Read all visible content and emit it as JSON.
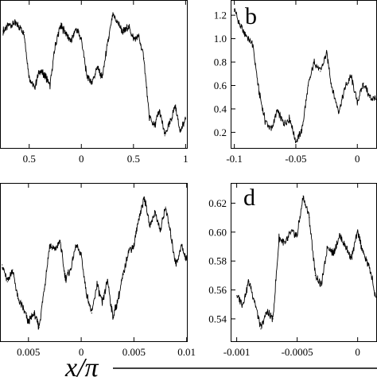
{
  "figure": {
    "xlabel": "x/π"
  },
  "chart_data": [
    {
      "type": "line",
      "panel_label": "",
      "x_ticks": [
        "0.5",
        "0",
        "0.5",
        "1"
      ],
      "y_ticks": [],
      "x": [
        -0.75,
        -0.7,
        -0.65,
        -0.6,
        -0.55,
        -0.5,
        -0.45,
        -0.4,
        -0.35,
        -0.3,
        -0.25,
        -0.2,
        -0.15,
        -0.1,
        -0.05,
        0,
        0.05,
        0.1,
        0.15,
        0.2,
        0.25,
        0.3,
        0.35,
        0.4,
        0.45,
        0.5,
        0.55,
        0.6,
        0.65,
        0.7,
        0.75,
        0.8,
        0.85,
        0.9,
        0.95,
        1.0
      ],
      "y": [
        1.06,
        1.1,
        1.12,
        1.1,
        1.05,
        0.7,
        0.62,
        0.75,
        0.72,
        0.64,
        0.95,
        1.1,
        1.05,
        0.98,
        1.08,
        1.0,
        0.72,
        0.66,
        0.78,
        0.7,
        0.95,
        1.18,
        1.12,
        1.05,
        1.1,
        1.0,
        1.02,
        0.85,
        0.4,
        0.32,
        0.45,
        0.25,
        0.35,
        0.48,
        0.28,
        0.38
      ]
    },
    {
      "type": "line",
      "panel_label": "b",
      "x_ticks": [
        "-0.1",
        "-0.05",
        "0"
      ],
      "y_ticks": [
        "0.2",
        "0.4",
        "0.6",
        "0.8",
        "1.0",
        "1.2"
      ],
      "x": [
        -0.1,
        -0.095,
        -0.09,
        -0.085,
        -0.08,
        -0.075,
        -0.07,
        -0.065,
        -0.06,
        -0.055,
        -0.05,
        -0.045,
        -0.04,
        -0.035,
        -0.03,
        -0.025,
        -0.02,
        -0.015,
        -0.01,
        -0.005,
        0,
        0.005,
        0.01,
        0.015
      ],
      "y": [
        1.25,
        1.1,
        1.02,
        0.95,
        0.55,
        0.3,
        0.22,
        0.38,
        0.28,
        0.32,
        0.12,
        0.22,
        0.6,
        0.8,
        0.72,
        0.88,
        0.55,
        0.38,
        0.58,
        0.68,
        0.45,
        0.62,
        0.5,
        0.48
      ]
    },
    {
      "type": "line",
      "panel_label": "",
      "x_ticks": [
        "0.005",
        "0",
        "0.005",
        "0.01"
      ],
      "y_ticks": [],
      "x": [
        -0.0075,
        -0.007,
        -0.0065,
        -0.006,
        -0.0055,
        -0.005,
        -0.0045,
        -0.004,
        -0.0035,
        -0.003,
        -0.0025,
        -0.002,
        -0.0015,
        -0.001,
        -0.0005,
        0,
        0.0005,
        0.001,
        0.0015,
        0.002,
        0.0025,
        0.003,
        0.0035,
        0.004,
        0.0045,
        0.005,
        0.0055,
        0.006,
        0.0065,
        0.007,
        0.0075,
        0.008,
        0.0085,
        0.009,
        0.0095,
        0.01
      ],
      "y": [
        0.62,
        0.55,
        0.6,
        0.48,
        0.44,
        0.38,
        0.42,
        0.36,
        0.52,
        0.7,
        0.68,
        0.72,
        0.56,
        0.6,
        0.7,
        0.66,
        0.5,
        0.42,
        0.54,
        0.46,
        0.56,
        0.4,
        0.48,
        0.58,
        0.68,
        0.7,
        0.82,
        0.9,
        0.78,
        0.84,
        0.76,
        0.86,
        0.74,
        0.62,
        0.7,
        0.64
      ]
    },
    {
      "type": "line",
      "panel_label": "d",
      "x_ticks": [
        "-0.001",
        "-0.0005",
        "0"
      ],
      "y_ticks": [
        "0.54",
        "0.56",
        "0.58",
        "0.60",
        "0.62"
      ],
      "x": [
        -0.001,
        -0.00095,
        -0.0009,
        -0.00085,
        -0.0008,
        -0.00075,
        -0.0007,
        -0.00065,
        -0.0006,
        -0.00055,
        -0.0005,
        -0.00045,
        -0.0004,
        -0.00035,
        -0.0003,
        -0.00025,
        -0.0002,
        -0.00015,
        -0.0001,
        -5e-05,
        0,
        5e-05,
        0.0001,
        0.00015
      ],
      "y": [
        0.556,
        0.55,
        0.566,
        0.552,
        0.533,
        0.545,
        0.54,
        0.596,
        0.592,
        0.6,
        0.598,
        0.625,
        0.61,
        0.57,
        0.563,
        0.59,
        0.585,
        0.598,
        0.59,
        0.582,
        0.6,
        0.585,
        0.575,
        0.555
      ]
    }
  ]
}
